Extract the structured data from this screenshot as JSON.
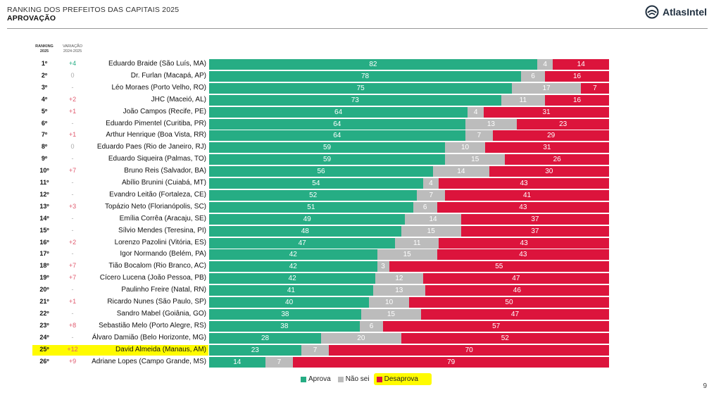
{
  "header": {
    "title": "RANKING DOS PREFEITOS DAS CAPITAIS 2025",
    "subtitle": "APROVAÇÃO",
    "brand": "AtlasIntel"
  },
  "columns": {
    "ranking_line1": "RANKING",
    "ranking_line2": "2025",
    "variation_line1": "VARIAÇÃO",
    "variation_line2": "2024-2025"
  },
  "page_number": "9",
  "colors": {
    "aprova": "#26ad84",
    "naosei": "#bcbcbc",
    "desaprova": "#dc143c",
    "delta_up": "#26ad84",
    "delta_down": "#e05a6e",
    "delta_neutral": "#aaaaaa",
    "highlight": "#fffb00"
  },
  "chart_data": {
    "type": "bar",
    "orientation": "horizontal",
    "stacked": true,
    "legend": {
      "position": "bottom-center",
      "items": [
        {
          "key": "aprova",
          "label": "Aprova"
        },
        {
          "key": "naosei",
          "label": "Não sei"
        },
        {
          "key": "desaprova",
          "label": "Desaprova"
        }
      ]
    },
    "highlighted_rank": "25º",
    "highlighted_legend": "desaprova",
    "rows": [
      {
        "rank": "1º",
        "delta": "+4",
        "trend": "up",
        "name": "Eduardo Braide (São Luís, MA)",
        "aprova": 82,
        "naosei": 4,
        "desaprova": 14
      },
      {
        "rank": "2º",
        "delta": "0",
        "trend": "neutral",
        "name": "Dr. Furlan (Macapá, AP)",
        "aprova": 78,
        "naosei": 6,
        "desaprova": 16
      },
      {
        "rank": "3º",
        "delta": "-",
        "trend": "neutral",
        "name": "Léo Moraes (Porto Velho, RO)",
        "aprova": 75,
        "naosei": 17,
        "desaprova": 7
      },
      {
        "rank": "4º",
        "delta": "+2",
        "trend": "down",
        "name": "JHC (Maceió, AL)",
        "aprova": 73,
        "naosei": 11,
        "desaprova": 16
      },
      {
        "rank": "5º",
        "delta": "+1",
        "trend": "down",
        "name": "João Campos (Recife, PE)",
        "aprova": 64,
        "naosei": 4,
        "desaprova": 31
      },
      {
        "rank": "6º",
        "delta": "-",
        "trend": "neutral",
        "name": "Eduardo Pimentel (Curitiba, PR)",
        "aprova": 64,
        "naosei": 13,
        "desaprova": 23
      },
      {
        "rank": "7º",
        "delta": "+1",
        "trend": "down",
        "name": "Arthur Henrique (Boa Vista, RR)",
        "aprova": 64,
        "naosei": 7,
        "desaprova": 29
      },
      {
        "rank": "8º",
        "delta": "0",
        "trend": "neutral",
        "name": "Eduardo Paes (Rio de Janeiro, RJ)",
        "aprova": 59,
        "naosei": 10,
        "desaprova": 31
      },
      {
        "rank": "9º",
        "delta": "-",
        "trend": "neutral",
        "name": "Eduardo Siqueira (Palmas, TO)",
        "aprova": 59,
        "naosei": 15,
        "desaprova": 26
      },
      {
        "rank": "10º",
        "delta": "+7",
        "trend": "down",
        "name": "Bruno Reis (Salvador, BA)",
        "aprova": 56,
        "naosei": 14,
        "desaprova": 30
      },
      {
        "rank": "11º",
        "delta": "-",
        "trend": "neutral",
        "name": "Abílio Brunini (Cuiabá, MT)",
        "aprova": 54,
        "naosei": 4,
        "desaprova": 43
      },
      {
        "rank": "12º",
        "delta": "-",
        "trend": "neutral",
        "name": "Evandro Leitão (Fortaleza, CE)",
        "aprova": 52,
        "naosei": 7,
        "desaprova": 41
      },
      {
        "rank": "13º",
        "delta": "+3",
        "trend": "down",
        "name": "Topázio Neto (Florianópolis, SC)",
        "aprova": 51,
        "naosei": 6,
        "desaprova": 43
      },
      {
        "rank": "14º",
        "delta": "-",
        "trend": "neutral",
        "name": "Emília Corrêa (Aracaju, SE)",
        "aprova": 49,
        "naosei": 14,
        "desaprova": 37
      },
      {
        "rank": "15º",
        "delta": "-",
        "trend": "neutral",
        "name": "Sílvio Mendes (Teresina, PI)",
        "aprova": 48,
        "naosei": 15,
        "desaprova": 37
      },
      {
        "rank": "16º",
        "delta": "+2",
        "trend": "down",
        "name": "Lorenzo Pazolini (Vitória, ES)",
        "aprova": 47,
        "naosei": 11,
        "desaprova": 43
      },
      {
        "rank": "17º",
        "delta": "-",
        "trend": "neutral",
        "name": "Igor Normando (Belém, PA)",
        "aprova": 42,
        "naosei": 15,
        "desaprova": 43
      },
      {
        "rank": "18º",
        "delta": "+7",
        "trend": "down",
        "name": "Tião Bocalom (Rio Branco, AC)",
        "aprova": 42,
        "naosei": 3,
        "desaprova": 55
      },
      {
        "rank": "19º",
        "delta": "+7",
        "trend": "down",
        "name": "Cícero Lucena (João Pessoa, PB)",
        "aprova": 42,
        "naosei": 12,
        "desaprova": 47
      },
      {
        "rank": "20º",
        "delta": "-",
        "trend": "neutral",
        "name": "Paulinho Freire (Natal, RN)",
        "aprova": 41,
        "naosei": 13,
        "desaprova": 46
      },
      {
        "rank": "21º",
        "delta": "+1",
        "trend": "down",
        "name": "Ricardo Nunes (São Paulo, SP)",
        "aprova": 40,
        "naosei": 10,
        "desaprova": 50
      },
      {
        "rank": "22º",
        "delta": "-",
        "trend": "neutral",
        "name": "Sandro Mabel (Goiânia, GO)",
        "aprova": 38,
        "naosei": 15,
        "desaprova": 47
      },
      {
        "rank": "23º",
        "delta": "+8",
        "trend": "down",
        "name": "Sebastião Melo (Porto Alegre, RS)",
        "aprova": 38,
        "naosei": 6,
        "desaprova": 57
      },
      {
        "rank": "24º",
        "delta": "-",
        "trend": "neutral",
        "name": "Álvaro Damião (Belo Horizonte, MG)",
        "aprova": 28,
        "naosei": 20,
        "desaprova": 52
      },
      {
        "rank": "25º",
        "delta": "+12",
        "trend": "down",
        "name": "David Almeida (Manaus, AM)",
        "aprova": 23,
        "naosei": 7,
        "desaprova": 70
      },
      {
        "rank": "26º",
        "delta": "+9",
        "trend": "down",
        "name": "Adriane Lopes (Campo Grande, MS)",
        "aprova": 14,
        "naosei": 7,
        "desaprova": 79
      }
    ]
  }
}
